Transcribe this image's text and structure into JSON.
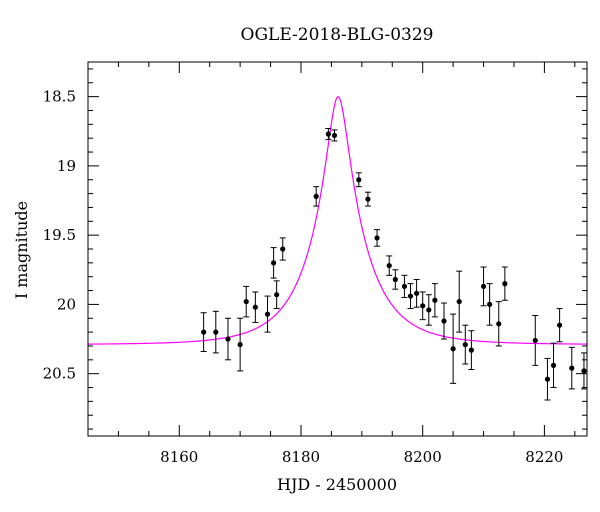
{
  "chart_data": {
    "type": "scatter",
    "title": "OGLE-2018-BLG-0329",
    "xlabel": "HJD - 2450000",
    "ylabel": "I magnitude",
    "xlim": [
      8145,
      8227
    ],
    "ylim": [
      20.95,
      18.25
    ],
    "y_inverted": true,
    "xticks": [
      8160,
      8180,
      8200,
      8220
    ],
    "yticks": [
      18.5,
      19,
      19.5,
      20,
      20.5
    ],
    "grid": false,
    "colors": {
      "points": "#000000",
      "model": "#ff00ff",
      "axes": "#000000"
    },
    "series": [
      {
        "kind": "points_with_errorbars",
        "points": [
          {
            "x": 8164.0,
            "y": 20.2,
            "err": 0.14
          },
          {
            "x": 8166.0,
            "y": 20.2,
            "err": 0.15
          },
          {
            "x": 8168.0,
            "y": 20.25,
            "err": 0.15
          },
          {
            "x": 8170.0,
            "y": 20.29,
            "err": 0.19
          },
          {
            "x": 8171.0,
            "y": 19.98,
            "err": 0.11
          },
          {
            "x": 8172.5,
            "y": 20.02,
            "err": 0.11
          },
          {
            "x": 8174.5,
            "y": 20.07,
            "err": 0.13
          },
          {
            "x": 8175.5,
            "y": 19.7,
            "err": 0.11
          },
          {
            "x": 8176.0,
            "y": 19.93,
            "err": 0.1
          },
          {
            "x": 8177.0,
            "y": 19.6,
            "err": 0.08
          },
          {
            "x": 8182.5,
            "y": 19.22,
            "err": 0.07
          },
          {
            "x": 8184.5,
            "y": 18.77,
            "err": 0.04
          },
          {
            "x": 8185.5,
            "y": 18.78,
            "err": 0.04
          },
          {
            "x": 8189.5,
            "y": 19.1,
            "err": 0.05
          },
          {
            "x": 8191.0,
            "y": 19.24,
            "err": 0.05
          },
          {
            "x": 8192.5,
            "y": 19.52,
            "err": 0.06
          },
          {
            "x": 8194.5,
            "y": 19.72,
            "err": 0.07
          },
          {
            "x": 8195.5,
            "y": 19.82,
            "err": 0.07
          },
          {
            "x": 8197.0,
            "y": 19.87,
            "err": 0.08
          },
          {
            "x": 8198.0,
            "y": 19.94,
            "err": 0.09
          },
          {
            "x": 8199.0,
            "y": 19.92,
            "err": 0.1
          },
          {
            "x": 8200.0,
            "y": 20.01,
            "err": 0.1
          },
          {
            "x": 8201.0,
            "y": 20.04,
            "err": 0.11
          },
          {
            "x": 8202.0,
            "y": 19.97,
            "err": 0.12
          },
          {
            "x": 8203.5,
            "y": 20.12,
            "err": 0.13
          },
          {
            "x": 8205.0,
            "y": 20.32,
            "err": 0.25
          },
          {
            "x": 8206.0,
            "y": 19.98,
            "err": 0.22
          },
          {
            "x": 8207.0,
            "y": 20.29,
            "err": 0.14
          },
          {
            "x": 8208.0,
            "y": 20.33,
            "err": 0.14
          },
          {
            "x": 8210.0,
            "y": 19.87,
            "err": 0.14
          },
          {
            "x": 8211.0,
            "y": 20.0,
            "err": 0.15
          },
          {
            "x": 8212.5,
            "y": 20.14,
            "err": 0.16
          },
          {
            "x": 8213.5,
            "y": 19.85,
            "err": 0.12
          },
          {
            "x": 8218.5,
            "y": 20.26,
            "err": 0.18
          },
          {
            "x": 8220.5,
            "y": 20.54,
            "err": 0.15
          },
          {
            "x": 8221.5,
            "y": 20.44,
            "err": 0.16
          },
          {
            "x": 8222.5,
            "y": 20.15,
            "err": 0.12
          },
          {
            "x": 8224.5,
            "y": 20.46,
            "err": 0.15
          },
          {
            "x": 8226.5,
            "y": 20.48,
            "err": 0.13
          }
        ]
      },
      {
        "kind": "model_curve",
        "model": {
          "t0": 8186.1,
          "A_peak": 5.2,
          "tE": 8.5,
          "baseline_mag": 20.29
        }
      }
    ]
  }
}
